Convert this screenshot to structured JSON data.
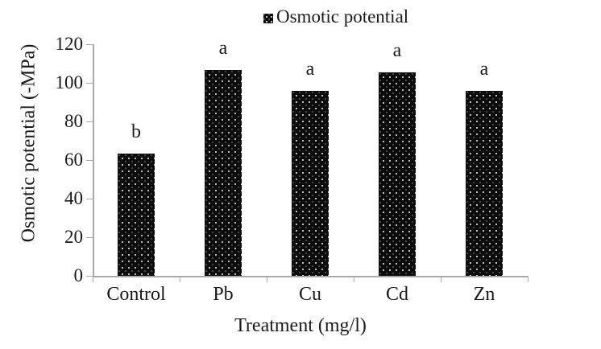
{
  "legend": {
    "label": "Osmotic potential",
    "marker_icon": "dotted-black-square"
  },
  "chart_data": {
    "type": "bar",
    "title": "",
    "categories": [
      "Control",
      "Pb",
      "Cu",
      "Cd",
      "Zn"
    ],
    "values": [
      63.5,
      106.5,
      96,
      105.5,
      96
    ],
    "bar_labels": [
      "b",
      "a",
      "a",
      "a",
      "a"
    ],
    "series_name": "Osmotic potential",
    "xlabel": "Treatment (mg/l)",
    "ylabel": "Osmotic potential (-MPa)",
    "ylim": [
      0,
      120
    ],
    "yticks": [
      0,
      20,
      40,
      60,
      80,
      100,
      120
    ],
    "grid": false,
    "legend_position": "top-center",
    "bar_pattern": "5%-white-dot-fill-on-black",
    "colors": {
      "bar_fill": "#0c0c0c",
      "bar_dots": "#ffffff",
      "axis": "#a9a9a9",
      "text": "#1a1a1a",
      "background": "#ffffff"
    }
  }
}
